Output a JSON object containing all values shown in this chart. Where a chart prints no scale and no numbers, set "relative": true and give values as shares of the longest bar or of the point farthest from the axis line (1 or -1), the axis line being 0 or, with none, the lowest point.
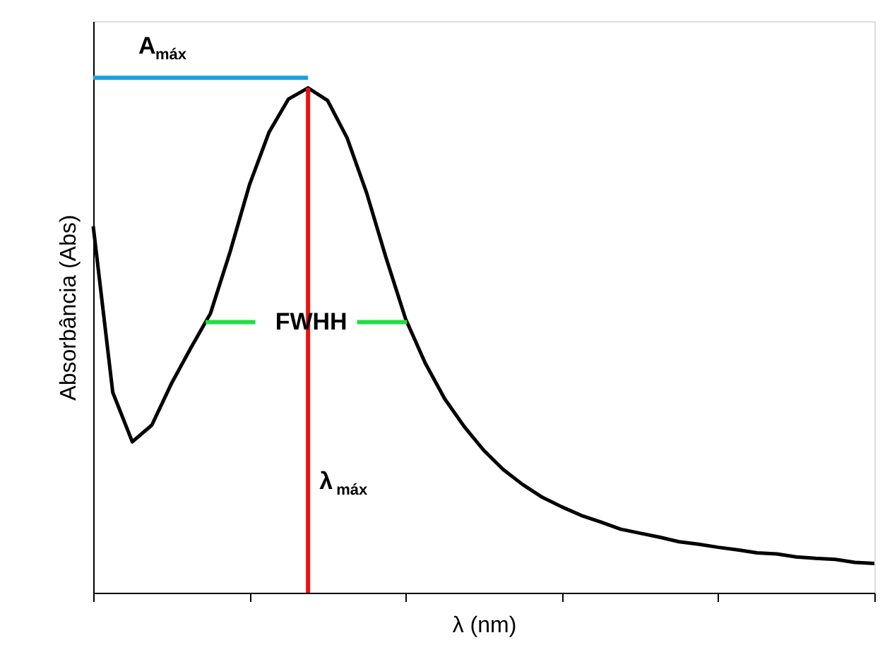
{
  "chart_data": {
    "type": "line",
    "relative": true,
    "xlabel": "λ (nm)",
    "ylabel": "Absorbância (Abs)",
    "grid": false,
    "categories": [
      null,
      null,
      null,
      null,
      null,
      null,
      null,
      null,
      null,
      null,
      null,
      null,
      null,
      null,
      null,
      null,
      null,
      null,
      null,
      null,
      null,
      null,
      null,
      null,
      null,
      null,
      null,
      null,
      null,
      null,
      null,
      null,
      null,
      null,
      null,
      null,
      null,
      null,
      null,
      null,
      null
    ],
    "series": [
      {
        "color": "#000000",
        "values": [
          0.726,
          0.397,
          0.299,
          0.332,
          0.414,
          0.485,
          0.553,
          0.674,
          0.808,
          0.912,
          0.978,
          1.0,
          0.975,
          0.901,
          0.792,
          0.663,
          0.542,
          0.455,
          0.384,
          0.329,
          0.282,
          0.244,
          0.214,
          0.189,
          0.17,
          0.153,
          0.14,
          0.126,
          0.118,
          0.11,
          0.101,
          0.096,
          0.09,
          0.085,
          0.079,
          0.077,
          0.071,
          0.068,
          0.066,
          0.06,
          0.058
        ]
      }
    ],
    "ref_lines": [
      {
        "axis": "y",
        "value": 1.02,
        "label": "A$_{máx}$",
        "color": "#1a9fe0"
      },
      {
        "axis": "y",
        "value": 0.536,
        "label": "FWHH",
        "color": "#22dd44"
      },
      {
        "axis": "x",
        "label": "λ$_{máx}$",
        "color": "#ee1111"
      }
    ]
  }
}
